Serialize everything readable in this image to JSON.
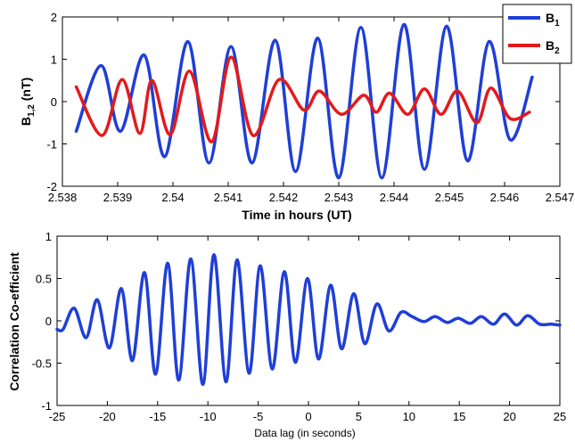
{
  "chart_data": [
    {
      "type": "line",
      "xlabel": "Time in hours (UT)",
      "ylabel_main": "B",
      "ylabel_sub": "1,2",
      "ylabel_unit": " (nT)",
      "xlim": [
        2.538,
        2.547
      ],
      "ylim": [
        -2,
        2
      ],
      "xticks": [
        2.538,
        2.539,
        2.54,
        2.541,
        2.542,
        2.543,
        2.544,
        2.545,
        2.546,
        2.547
      ],
      "xtick_labels": [
        "2.538",
        "2.539",
        "2.54",
        "2.541",
        "2.542",
        "2.543",
        "2.544",
        "2.545",
        "2.546",
        "2.547"
      ],
      "yticks": [
        -2,
        -1,
        0,
        1,
        2
      ],
      "ytick_labels": [
        "-2",
        "-1",
        "0",
        "1",
        "2"
      ],
      "grid": false,
      "legend_position": "top-right",
      "series": [
        {
          "name": "B",
          "name_sub": "1",
          "color": "#1f3fd6",
          "x": [
            2.53825,
            2.5387,
            2.53905,
            2.53948,
            2.53985,
            2.54027,
            2.54065,
            2.54105,
            2.54143,
            2.54185,
            2.54222,
            2.54262,
            2.543,
            2.5434,
            2.54378,
            2.54418,
            2.54455,
            2.54495,
            2.54533,
            2.54572,
            2.5461,
            2.5465
          ],
          "y": [
            -0.7,
            0.85,
            -0.7,
            1.1,
            -1.3,
            1.42,
            -1.45,
            1.3,
            -1.45,
            1.45,
            -1.65,
            1.5,
            -1.8,
            1.75,
            -1.8,
            1.82,
            -1.6,
            1.78,
            -1.4,
            1.42,
            -0.9,
            0.58
          ]
        },
        {
          "name": "B",
          "name_sub": "2",
          "color": "#e31a1c",
          "x": [
            2.53825,
            2.53872,
            2.53908,
            2.5394,
            2.53962,
            2.53995,
            2.5403,
            2.5407,
            2.54105,
            2.54145,
            2.54192,
            2.54237,
            2.54265,
            2.54305,
            2.54345,
            2.54368,
            2.54392,
            2.54425,
            2.54455,
            2.54485,
            2.54515,
            2.5455,
            2.54575,
            2.5461,
            2.54645
          ],
          "y": [
            0.35,
            -0.8,
            0.52,
            -0.75,
            0.5,
            -0.78,
            0.72,
            -0.95,
            1.05,
            -0.8,
            0.52,
            -0.2,
            0.25,
            -0.3,
            0.15,
            -0.25,
            0.2,
            -0.3,
            0.3,
            -0.3,
            0.25,
            -0.5,
            0.32,
            -0.4,
            -0.25
          ]
        }
      ]
    },
    {
      "type": "line",
      "xlabel": "Data lag (in seconds)",
      "ylabel": "Correlation Co-efficient",
      "xlim": [
        -25,
        25
      ],
      "ylim": [
        -1,
        1
      ],
      "xticks": [
        -25,
        -20,
        -15,
        -10,
        -5,
        0,
        5,
        10,
        15,
        20,
        25
      ],
      "xtick_labels": [
        "-25",
        "-20",
        "-15",
        "-10",
        "-5",
        "0",
        "5",
        "10",
        "15",
        "20",
        "25"
      ],
      "yticks": [
        -1,
        -0.5,
        0,
        0.5,
        1
      ],
      "ytick_labels": [
        "-1",
        "-0.5",
        "0",
        "0.5",
        "1"
      ],
      "grid": false,
      "series": [
        {
          "color": "#1f3fd6",
          "x": [
            -25,
            -24.4,
            -23.3,
            -22.1,
            -21.0,
            -19.8,
            -18.6,
            -17.5,
            -16.3,
            -15.2,
            -14.0,
            -12.9,
            -11.7,
            -10.5,
            -9.4,
            -8.2,
            -7.1,
            -5.9,
            -4.8,
            -3.6,
            -2.4,
            -1.3,
            -0.1,
            1.0,
            2.2,
            3.3,
            4.5,
            5.6,
            6.8,
            8.0,
            9.2,
            10.3,
            11.5,
            12.6,
            13.8,
            14.9,
            16.1,
            17.2,
            18.4,
            19.5,
            20.7,
            21.8,
            23.0,
            24.1,
            25
          ],
          "y": [
            -0.1,
            -0.1,
            0.15,
            -0.2,
            0.25,
            -0.32,
            0.38,
            -0.47,
            0.57,
            -0.63,
            0.68,
            -0.7,
            0.73,
            -0.75,
            0.78,
            -0.72,
            0.72,
            -0.62,
            0.65,
            -0.57,
            0.58,
            -0.49,
            0.5,
            -0.45,
            0.42,
            -0.33,
            0.32,
            -0.27,
            0.2,
            -0.12,
            0.1,
            0.05,
            -0.01,
            0.05,
            -0.02,
            0.03,
            -0.03,
            0.05,
            -0.04,
            0.08,
            -0.05,
            0.06,
            -0.04,
            -0.04,
            -0.05
          ]
        }
      ]
    }
  ]
}
